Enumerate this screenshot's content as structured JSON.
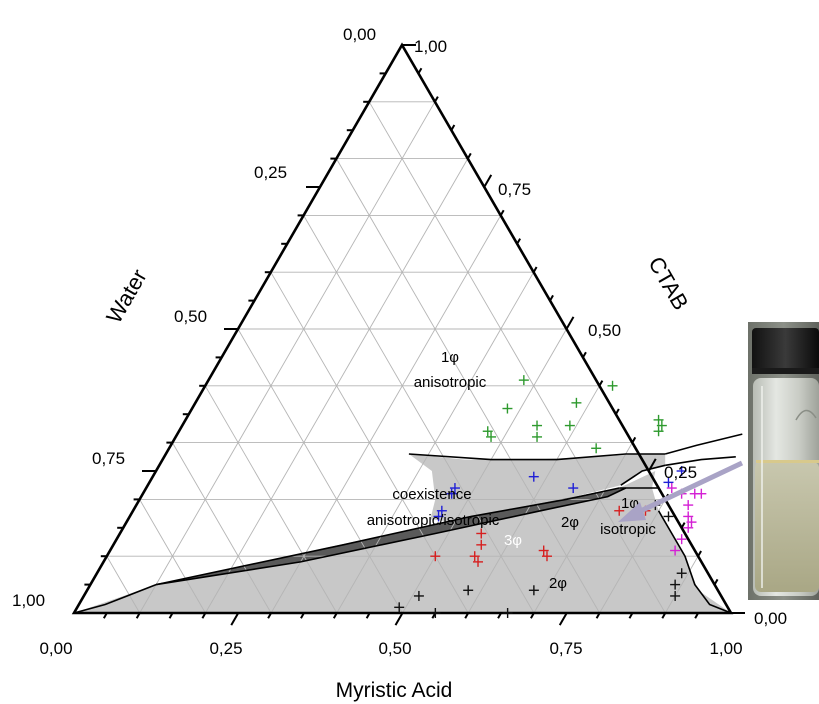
{
  "chart_data": {
    "type": "ternary",
    "xlabel": "Myristic Acid",
    "left_axis_label": "Water",
    "right_axis_label": "CTAB",
    "ticks": [
      "0,00",
      "0,25",
      "0,50",
      "0,75",
      "1,00"
    ],
    "regions": [
      {
        "label": "1φ",
        "sublabel": "anisotropic",
        "color": "#ffffff"
      },
      {
        "label": "coexistence",
        "sublabel": "anisotropic/isotropic",
        "color": "#c8c8c8"
      },
      {
        "label": "2φ",
        "color": "#ffffff"
      },
      {
        "label": "1φ",
        "sublabel": "isotropic",
        "color": "#ffffff"
      },
      {
        "label": "3φ",
        "color": "#5a5a5a"
      },
      {
        "label": "2φ",
        "color": "#c8c8c8"
      }
    ],
    "colors": {
      "region_gray": "#c8c8c8",
      "three_phase": "#5a5a5a",
      "grid": "#b5b5b5"
    },
    "series": [
      {
        "marker_color": "#2e9a2e",
        "points": [
          {
            "myristic_acid": 0.48,
            "ctab": 0.41
          },
          {
            "myristic_acid": 0.62,
            "ctab": 0.4
          },
          {
            "myristic_acid": 0.48,
            "ctab": 0.36
          },
          {
            "myristic_acid": 0.58,
            "ctab": 0.37
          },
          {
            "myristic_acid": 0.54,
            "ctab": 0.33
          },
          {
            "myristic_acid": 0.59,
            "ctab": 0.33
          },
          {
            "myristic_acid": 0.47,
            "ctab": 0.32
          },
          {
            "myristic_acid": 0.48,
            "ctab": 0.31
          },
          {
            "myristic_acid": 0.55,
            "ctab": 0.31
          },
          {
            "myristic_acid": 0.72,
            "ctab": 0.34
          },
          {
            "myristic_acid": 0.73,
            "ctab": 0.33
          },
          {
            "myristic_acid": 0.73,
            "ctab": 0.32
          },
          {
            "myristic_acid": 0.65,
            "ctab": 0.29
          }
        ]
      },
      {
        "marker_color": "#1f1fd6",
        "points": [
          {
            "myristic_acid": 0.58,
            "ctab": 0.24
          },
          {
            "myristic_acid": 0.47,
            "ctab": 0.22
          },
          {
            "myristic_acid": 0.47,
            "ctab": 0.21
          },
          {
            "myristic_acid": 0.65,
            "ctab": 0.22
          },
          {
            "myristic_acid": 0.47,
            "ctab": 0.18
          },
          {
            "myristic_acid": 0.47,
            "ctab": 0.17
          },
          {
            "myristic_acid": 0.8,
            "ctab": 0.25
          },
          {
            "myristic_acid": 0.79,
            "ctab": 0.23
          }
        ]
      },
      {
        "marker_color": "#d62020",
        "points": [
          {
            "myristic_acid": 0.5,
            "ctab": 0.1
          },
          {
            "myristic_acid": 0.55,
            "ctab": 0.14
          },
          {
            "myristic_acid": 0.56,
            "ctab": 0.12
          },
          {
            "myristic_acid": 0.56,
            "ctab": 0.1
          },
          {
            "myristic_acid": 0.57,
            "ctab": 0.09
          },
          {
            "myristic_acid": 0.66,
            "ctab": 0.11
          },
          {
            "myristic_acid": 0.67,
            "ctab": 0.1
          },
          {
            "myristic_acid": 0.74,
            "ctab": 0.18
          },
          {
            "myristic_acid": 0.78,
            "ctab": 0.18
          }
        ]
      },
      {
        "marker_color": "#d41fd4",
        "points": [
          {
            "myristic_acid": 0.8,
            "ctab": 0.22
          },
          {
            "myristic_acid": 0.82,
            "ctab": 0.21
          },
          {
            "myristic_acid": 0.84,
            "ctab": 0.21
          },
          {
            "myristic_acid": 0.85,
            "ctab": 0.21
          },
          {
            "myristic_acid": 0.84,
            "ctab": 0.19
          },
          {
            "myristic_acid": 0.85,
            "ctab": 0.17
          },
          {
            "myristic_acid": 0.86,
            "ctab": 0.16
          },
          {
            "myristic_acid": 0.86,
            "ctab": 0.15
          },
          {
            "myristic_acid": 0.86,
            "ctab": 0.13
          },
          {
            "myristic_acid": 0.86,
            "ctab": 0.11
          }
        ]
      },
      {
        "marker_color": "#111111",
        "points": [
          {
            "myristic_acid": 0.79,
            "ctab": 0.19
          },
          {
            "myristic_acid": 0.82,
            "ctab": 0.17
          },
          {
            "myristic_acid": 0.58,
            "ctab": 0.04
          },
          {
            "myristic_acid": 0.68,
            "ctab": 0.04
          },
          {
            "myristic_acid": 0.51,
            "ctab": 0.03
          },
          {
            "myristic_acid": 0.89,
            "ctab": 0.07
          },
          {
            "myristic_acid": 0.89,
            "ctab": 0.05
          },
          {
            "myristic_acid": 0.9,
            "ctab": 0.03
          },
          {
            "myristic_acid": 0.49,
            "ctab": 0.01
          },
          {
            "myristic_acid": 0.55,
            "ctab": 0.0
          },
          {
            "myristic_acid": 0.66,
            "ctab": 0.0
          }
        ]
      }
    ]
  },
  "inset": {
    "description_icon": "vial-photo-icon"
  }
}
